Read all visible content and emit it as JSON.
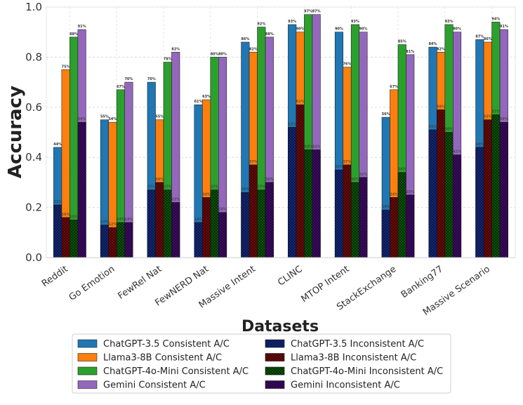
{
  "chart_data": {
    "type": "bar",
    "xlabel": "Datasets",
    "ylabel": "Accuracy",
    "ylim": [
      0,
      1.0
    ],
    "yticks": [
      "0.0",
      "0.2",
      "0.4",
      "0.6",
      "0.8",
      "1.0"
    ],
    "grid": true,
    "legend_position": "bottom",
    "categories": [
      "Reddit",
      "Go Emotion",
      "FewRel Nat",
      "FewNERD Nat",
      "Massive Intent",
      "CLINC",
      "MTOP Intent",
      "StackExchange",
      "Banking77",
      "Massive Scenario"
    ],
    "series": [
      {
        "name": "ChatGPT-3.5",
        "color": "#1f77b4",
        "consistent_name": "ChatGPT-3.5 Consistent A/C",
        "inconsistent_name": "ChatGPT-3.5 Inconsistent A/C",
        "consistent": [
          0.44,
          0.55,
          0.7,
          0.61,
          0.86,
          0.93,
          0.9,
          0.56,
          0.84,
          0.87
        ],
        "consistent_labels": [
          "44%",
          "55%",
          "70%",
          "61%",
          "86%",
          "93%",
          "90%",
          "56%",
          "84%",
          "87%"
        ],
        "inconsistent": [
          0.21,
          0.13,
          0.27,
          0.14,
          0.26,
          0.52,
          0.35,
          0.19,
          0.51,
          0.44
        ],
        "inconsistent_labels": [
          "21%",
          "13%",
          "27%",
          "14%",
          "26%",
          "52%",
          "35%",
          "19%",
          "51%",
          "44%"
        ]
      },
      {
        "name": "Llama3-8B",
        "color": "#ff7f0e",
        "consistent_name": "Llama3-8B Consistent A/C",
        "inconsistent_name": "Llama3-8B Inconsistent A/C",
        "consistent": [
          0.75,
          0.54,
          0.55,
          0.63,
          0.82,
          0.9,
          0.76,
          0.67,
          0.82,
          0.86
        ],
        "consistent_labels": [
          "75%",
          "54%",
          "55%",
          "63%",
          "82%",
          "90%",
          "76%",
          "67%",
          "82%",
          "86%"
        ],
        "inconsistent": [
          0.16,
          0.12,
          0.3,
          0.24,
          0.37,
          0.61,
          0.37,
          0.24,
          0.59,
          0.55
        ],
        "inconsistent_labels": [
          "16%",
          "12%",
          "30%",
          "24%",
          "37%",
          "61%",
          "37%",
          "24%",
          "59%",
          "55%"
        ]
      },
      {
        "name": "ChatGPT-4o-Mini",
        "color": "#2ca02c",
        "consistent_name": "ChatGPT-4o-Mini Consistent A/C",
        "inconsistent_name": "ChatGPT-4o-Mini Inconsistent A/C",
        "consistent": [
          0.88,
          0.67,
          0.78,
          0.8,
          0.92,
          0.97,
          0.93,
          0.85,
          0.93,
          0.94
        ],
        "consistent_labels": [
          "88%",
          "67%",
          "78%",
          "80%",
          "92%",
          "97%",
          "93%",
          "85%",
          "93%",
          "94%"
        ],
        "inconsistent": [
          0.15,
          0.14,
          0.27,
          0.27,
          0.27,
          0.43,
          0.3,
          0.34,
          0.5,
          0.57
        ],
        "inconsistent_labels": [
          "15%",
          "14%",
          "27%",
          "27%",
          "27%",
          "43%",
          "30%",
          "34%",
          "50%",
          "57%"
        ]
      },
      {
        "name": "Gemini",
        "color": "#9467bd",
        "consistent_name": "Gemini Consistent A/C",
        "inconsistent_name": "Gemini Inconsistent A/C",
        "consistent": [
          0.91,
          0.7,
          0.82,
          0.8,
          0.88,
          0.97,
          0.9,
          0.81,
          0.9,
          0.91
        ],
        "consistent_labels": [
          "91%",
          "70%",
          "82%",
          "80%",
          "88%",
          "97%",
          "90%",
          "81%",
          "90%",
          "91%"
        ],
        "inconsistent": [
          0.54,
          0.14,
          0.22,
          0.18,
          0.3,
          0.43,
          0.32,
          0.25,
          0.41,
          0.54
        ],
        "inconsistent_labels": [
          "54%",
          "14%",
          "22%",
          "18%",
          "30%",
          "43%",
          "32%",
          "25%",
          "41%",
          "54%"
        ]
      }
    ],
    "inconsistent_colors": [
      "#0b2a9e",
      "#8b0000",
      "#006400",
      "#4b0082"
    ]
  }
}
